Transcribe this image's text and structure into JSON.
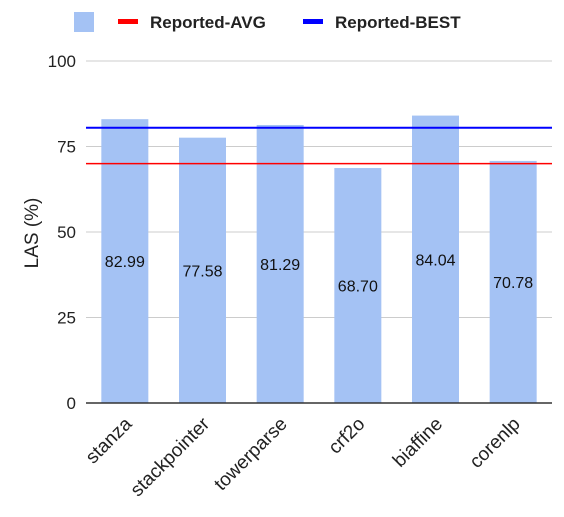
{
  "chart_data": {
    "type": "bar",
    "categories": [
      "stanza",
      "stackpointer",
      "towerparse",
      "crf2o",
      "biaffine",
      "corenlp"
    ],
    "series": [
      {
        "values": [
          82.99,
          77.58,
          81.29,
          68.7,
          84.04,
          70.78
        ],
        "color": "#a4c2f4"
      }
    ],
    "data_labels": [
      "82.99",
      "77.58",
      "81.29",
      "68.70",
      "84.04",
      "70.78"
    ],
    "reference_lines": [
      {
        "name": "Reported-AVG",
        "value": 70,
        "color": "#ff0000"
      },
      {
        "name": "Reported-BEST",
        "value": 80.5,
        "color": "#0000ff"
      }
    ],
    "xlabel": "",
    "ylabel": "LAS (%)",
    "ylim": [
      0,
      100
    ],
    "yticks": [
      0,
      25,
      50,
      75,
      100
    ],
    "grid": true,
    "legend_position": "top"
  }
}
